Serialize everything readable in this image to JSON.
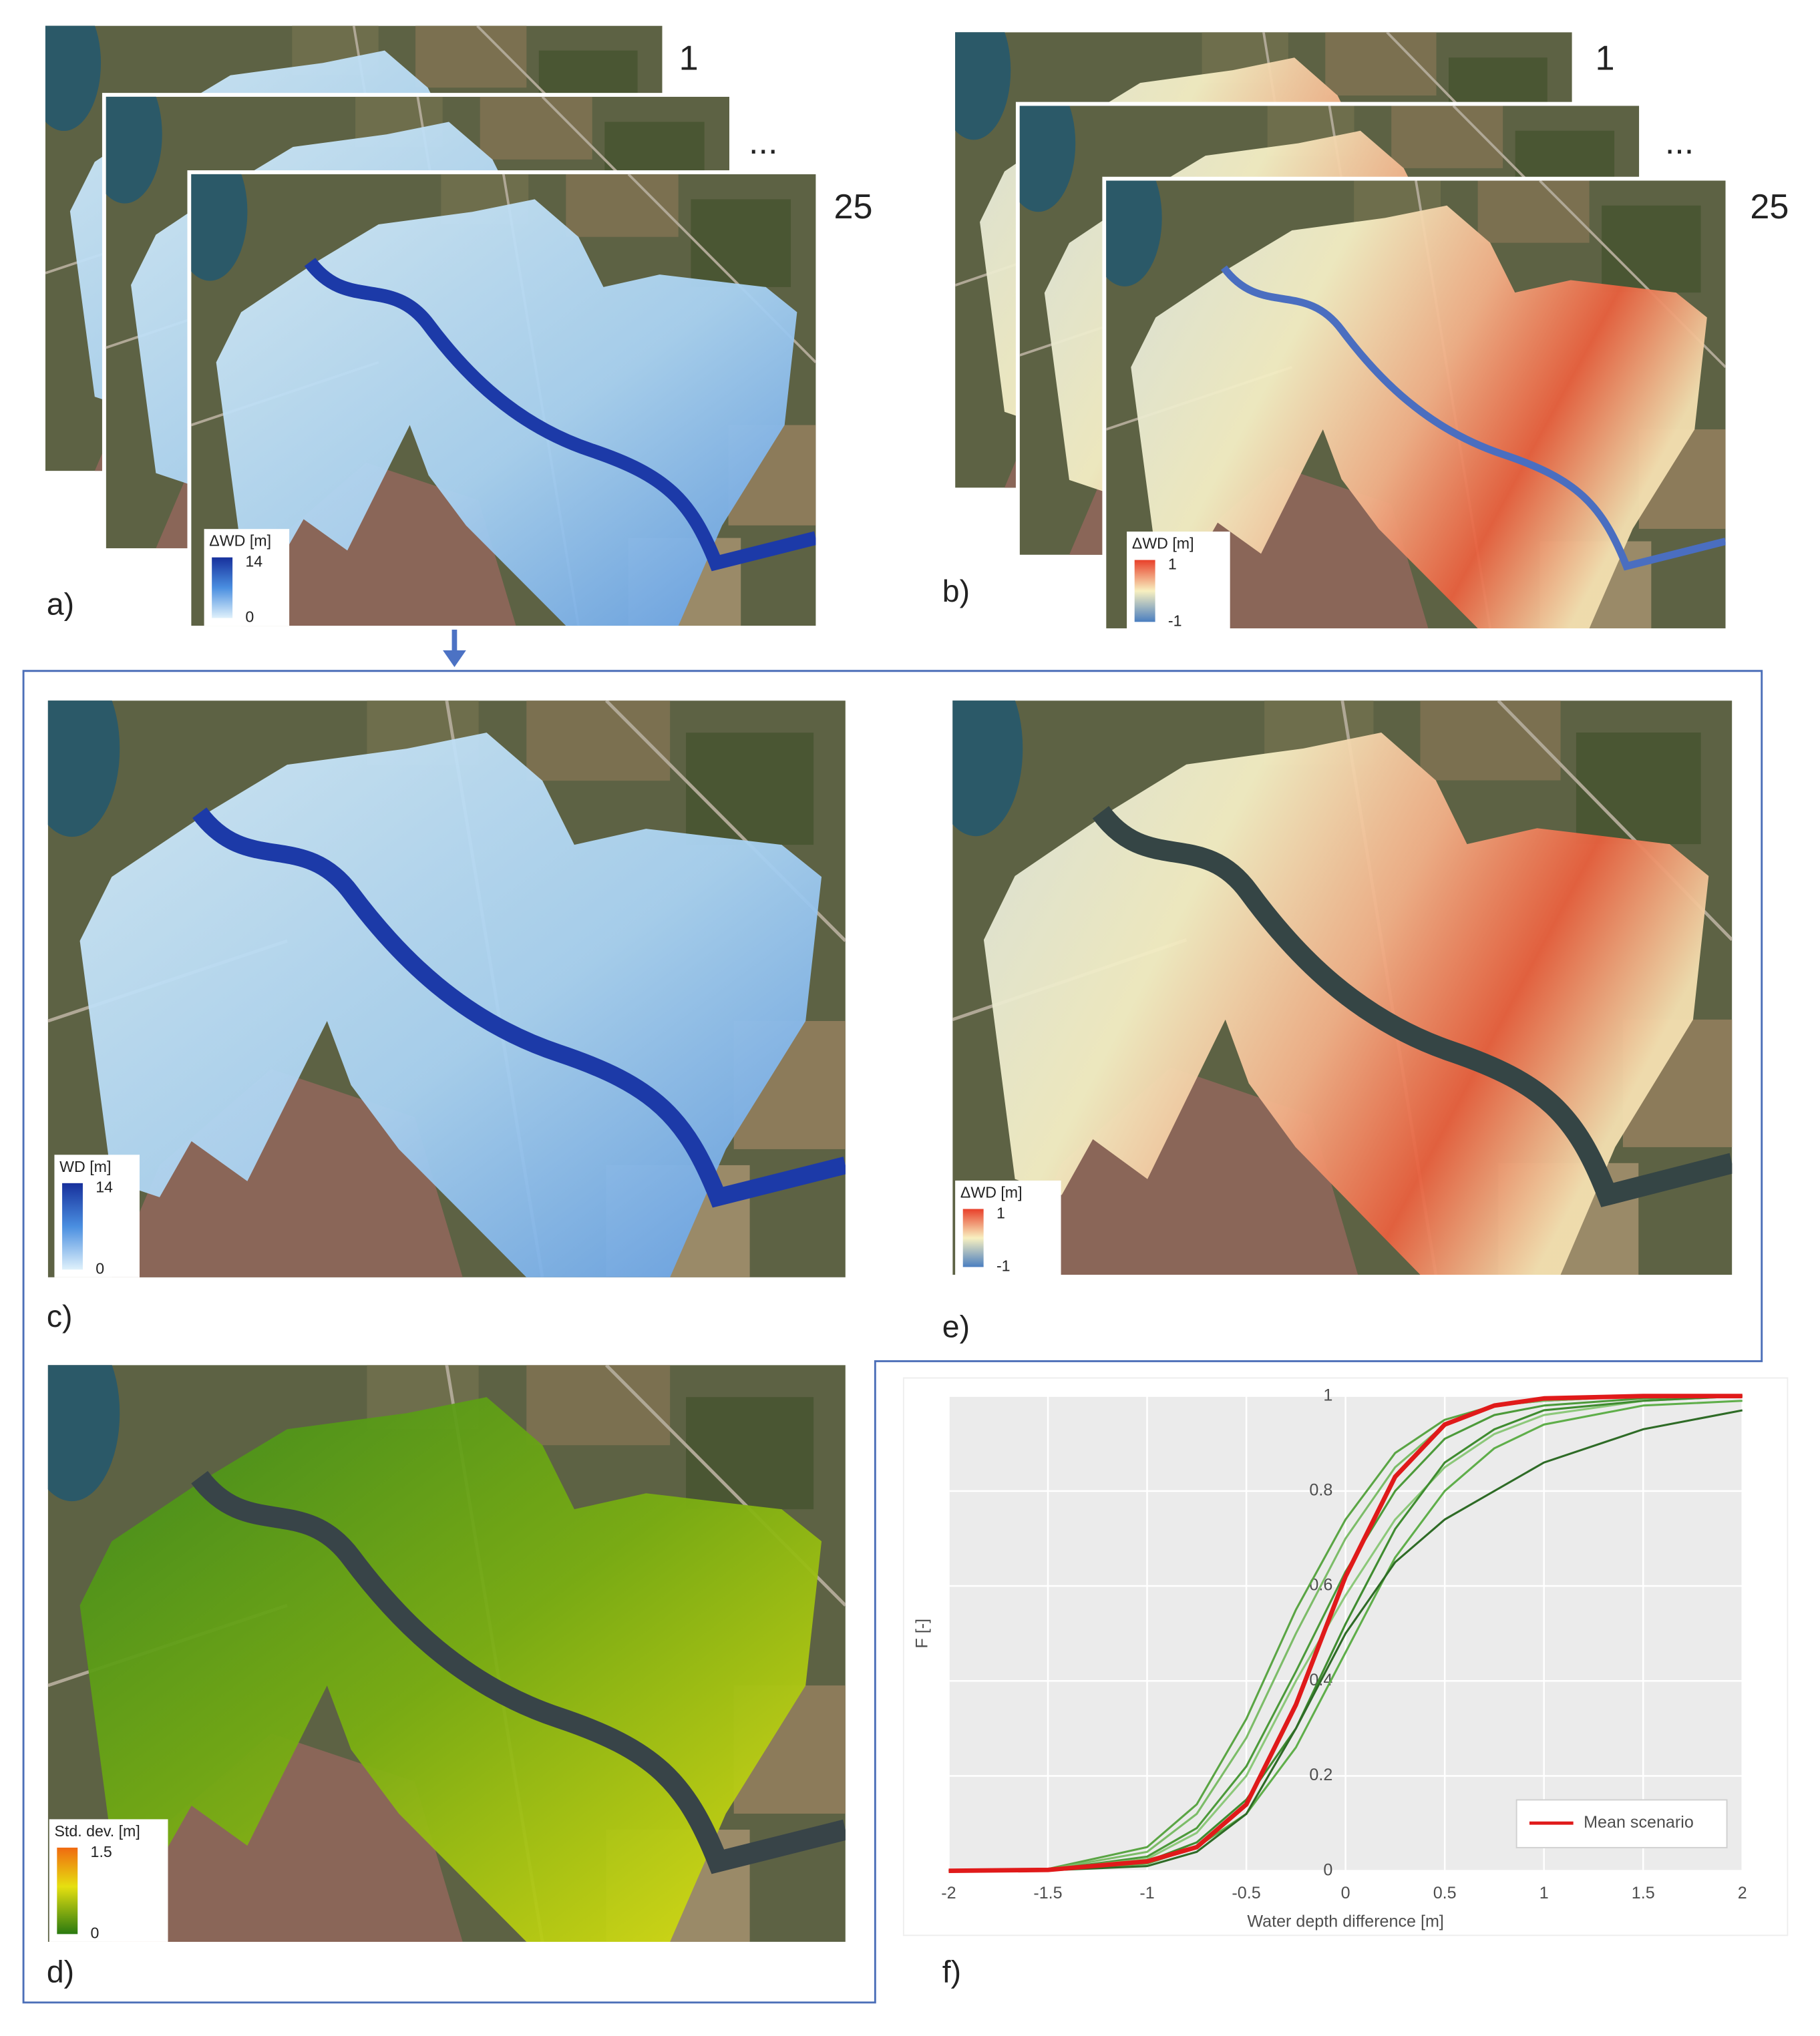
{
  "panel_a": {
    "label": "a)",
    "stack_labels": [
      "1",
      "...",
      "25"
    ],
    "legend": {
      "title": "ΔWD [m]",
      "max": 14,
      "min": 0
    }
  },
  "panel_b": {
    "label": "b)",
    "stack_labels": [
      "1",
      "...",
      "25"
    ],
    "legend": {
      "title": "ΔWD [m]",
      "max": 1,
      "min": -1
    }
  },
  "panel_c": {
    "label": "c)",
    "legend": {
      "title": "WD [m]",
      "max": 14,
      "min": 0
    }
  },
  "panel_d": {
    "label": "d)",
    "legend": {
      "title": "Std. dev. [m]",
      "max": 1.5,
      "min": 0
    }
  },
  "panel_e": {
    "label": "e)",
    "legend": {
      "title": "ΔWD [m]",
      "max": 1,
      "min": -1
    }
  },
  "panel_f": {
    "label": "f)"
  },
  "chart_data": {
    "type": "line",
    "xlabel": "Water depth difference [m]",
    "ylabel": "F [-]",
    "x": [
      -2,
      -1.5,
      -1,
      -0.75,
      -0.5,
      -0.25,
      0,
      0.25,
      0.5,
      0.75,
      1,
      1.5,
      2
    ],
    "series": [
      {
        "color": "#5aa544",
        "values": [
          0,
          0.004,
          0.05,
          0.14,
          0.32,
          0.55,
          0.74,
          0.88,
          0.95,
          0.98,
          0.99,
          1,
          1
        ]
      },
      {
        "color": "#7cbc68",
        "values": [
          0,
          0.003,
          0.04,
          0.12,
          0.28,
          0.5,
          0.7,
          0.85,
          0.94,
          0.98,
          0.99,
          1,
          1
        ]
      },
      {
        "color": "#4c9a3a",
        "values": [
          0,
          0.002,
          0.03,
          0.09,
          0.22,
          0.42,
          0.63,
          0.8,
          0.91,
          0.96,
          0.98,
          0.995,
          1
        ]
      },
      {
        "color": "#8cc87a",
        "values": [
          0,
          0.002,
          0.025,
          0.08,
          0.2,
          0.4,
          0.58,
          0.74,
          0.85,
          0.92,
          0.96,
          0.99,
          1
        ]
      },
      {
        "color": "#3f8c30",
        "values": [
          0,
          0.001,
          0.02,
          0.06,
          0.15,
          0.3,
          0.52,
          0.72,
          0.86,
          0.93,
          0.97,
          0.99,
          1
        ]
      },
      {
        "color": "#5fae4a",
        "values": [
          0,
          0.001,
          0.015,
          0.05,
          0.12,
          0.26,
          0.46,
          0.66,
          0.8,
          0.89,
          0.94,
          0.98,
          0.99
        ]
      },
      {
        "color": "#2e6b26",
        "values": [
          0,
          0.001,
          0.01,
          0.04,
          0.12,
          0.3,
          0.5,
          0.65,
          0.74,
          0.8,
          0.86,
          0.93,
          0.97
        ]
      },
      {
        "name": "Mean scenario",
        "color": "#e01a1a",
        "values": [
          0,
          0.002,
          0.02,
          0.05,
          0.14,
          0.35,
          0.62,
          0.83,
          0.94,
          0.98,
          0.995,
          1,
          1
        ]
      }
    ],
    "xlim": [
      -2,
      2
    ],
    "ylim": [
      0,
      1
    ],
    "xticks": [
      -2,
      -1.5,
      -1,
      -0.5,
      0,
      0.5,
      1,
      1.5,
      2
    ],
    "yticks": [
      0,
      0.2,
      0.4,
      0.6,
      0.8,
      1
    ],
    "grid": true,
    "legend": "lower right"
  }
}
